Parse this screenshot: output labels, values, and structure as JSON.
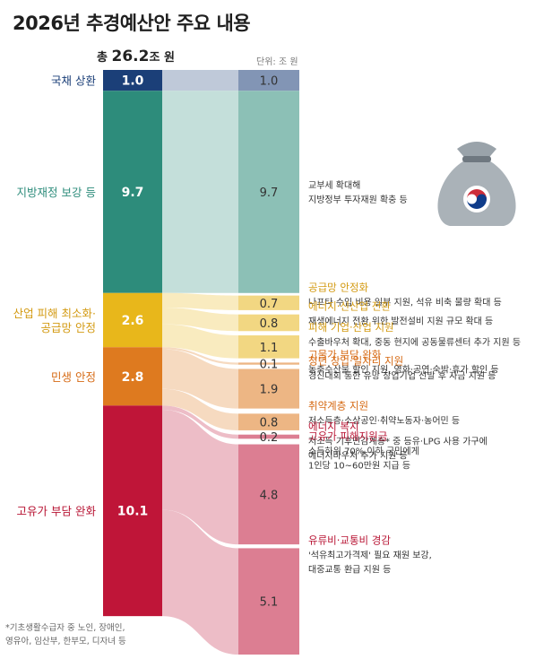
{
  "title": "2026년 추경예산안 주요 내용",
  "total": {
    "prefix": "총",
    "value": "26.2",
    "suffix": "조 원"
  },
  "unit_label": "단위: 조 원",
  "footnote": [
    "*기초생활수급자 중 노인, 장애인,",
    "영유아, 임산부, 한부모, 디자녀 등"
  ],
  "chart_data": {
    "type": "sankey",
    "unit": "조 원",
    "total": 26.2,
    "categories": [
      {
        "name": "국채 상환",
        "value": 1.0,
        "color": "#1b3f78",
        "label_color": "#1b3f78"
      },
      {
        "name": "지방재정 보강 등",
        "value": 9.7,
        "color": "#2d8c7b",
        "label_color": "#2d8c7b"
      },
      {
        "name": "산업 피해 최소화·\n공급망 안정",
        "value": 2.6,
        "color": "#e8b71b",
        "label_color": "#d39a12"
      },
      {
        "name": "민생 안정",
        "value": 2.8,
        "color": "#de7a1f",
        "label_color": "#d66a14"
      },
      {
        "name": "고유가 부담 완화",
        "value": 10.1,
        "color": "#bf1538",
        "label_color": "#b81534"
      }
    ],
    "items": [
      {
        "parent": 0,
        "value": 1.0,
        "value_label": "1.0",
        "title": "",
        "desc": []
      },
      {
        "parent": 1,
        "value": 9.7,
        "value_label": "9.7",
        "title": "",
        "desc": [
          "교부세 확대해",
          "지방정부 투자재원 확충 등"
        ]
      },
      {
        "parent": 2,
        "value": 0.7,
        "value_label": "0.7",
        "title": "공급망 안정화",
        "desc": [
          "나프타 수입 비용 일부 지원, 석유 비축 물량 확대 등"
        ]
      },
      {
        "parent": 2,
        "value": 0.8,
        "value_label": "0.8",
        "title": "에너지·신산업 전환",
        "desc": [
          "재생에너지 전환 위한 발전설비 지원 규모 확대 등"
        ]
      },
      {
        "parent": 2,
        "value": 1.1,
        "value_label": "1.1",
        "title": "피해 기업·산업 지원",
        "desc": [
          "수출바우처 확대, 중동 현지에 공동물류센터 추가 지원 등"
        ]
      },
      {
        "parent": 3,
        "value": 0.1,
        "value_label": "0.1",
        "title": "고물가 부담 완화",
        "desc": [
          "농축수산물 할인 지원, 영화·공연·숙박·휴가 할인 등"
        ]
      },
      {
        "parent": 3,
        "value": 1.9,
        "value_label": "1.9",
        "title": "청년 창업·일자리 지원",
        "desc": [
          "경진대회 통한 유망 창업기업 선발 후 자금 지원 등"
        ]
      },
      {
        "parent": 3,
        "value": 0.8,
        "value_label": "0.8",
        "title": "취약계층 지원",
        "desc": [
          "저소득층·소상공인·취약노동자·농어민 등"
        ]
      },
      {
        "parent": 4,
        "value": 0.2,
        "value_label": "0.2",
        "title": "에너지 복지",
        "desc": [
          "저소득 기후민감계층* 중 등유·LPG 사용 가구에",
          "에너지바우처 추가 지원 등"
        ]
      },
      {
        "parent": 4,
        "value": 4.8,
        "value_label": "4.8",
        "title": "고유가 피해지원금",
        "desc": [
          "소득하위 70% 이하 국민에게",
          "1인당 10~60만원 지급 등"
        ]
      },
      {
        "parent": 4,
        "value": 5.1,
        "value_label": "5.1",
        "title": "유류비·교통비 경감",
        "desc": [
          "'석유최고가격제' 필요 재원 보강,",
          "대중교통 환급 지원 등"
        ]
      }
    ]
  }
}
